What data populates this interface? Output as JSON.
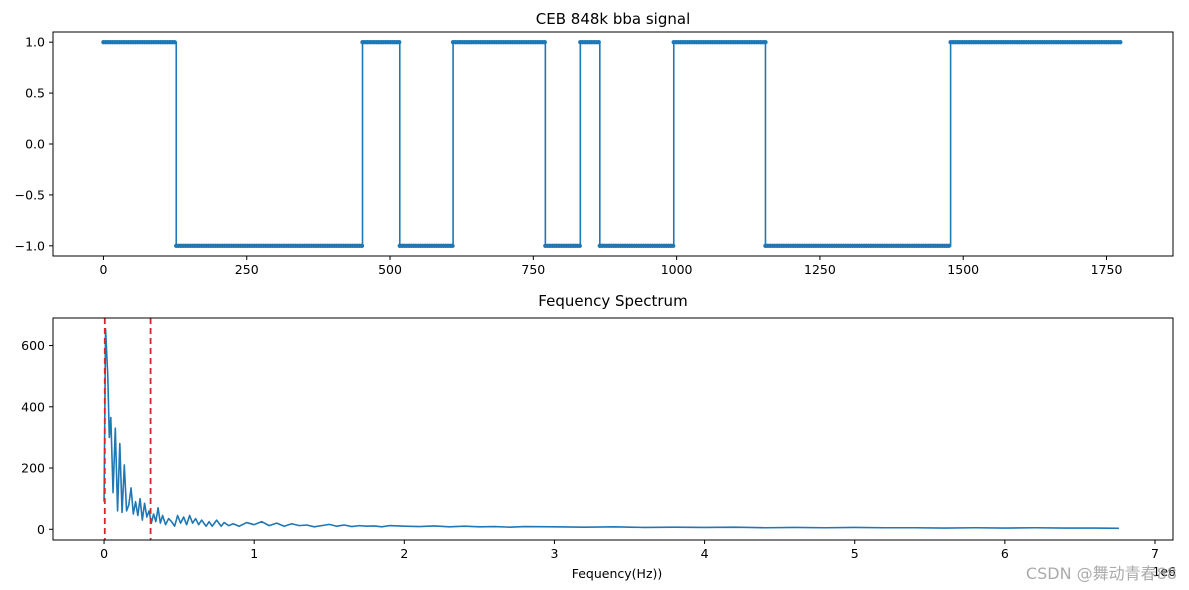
{
  "watermark": "CSDN @舞动青春88",
  "colors": {
    "series": "#1f77b4",
    "marker_line": "#d62728",
    "axis": "#000000"
  },
  "chart_data": [
    {
      "type": "line",
      "title": "CEB 848k bba signal",
      "xlabel": "",
      "ylabel": "",
      "xlim": [
        -88,
        1866
      ],
      "ylim": [
        -1.1,
        1.1
      ],
      "xticks": [
        0,
        250,
        500,
        750,
        1000,
        1250,
        1500,
        1750
      ],
      "xtick_labels": [
        "0",
        "250",
        "500",
        "750",
        "1000",
        "1250",
        "1500",
        "1750"
      ],
      "yticks": [
        -1.0,
        -0.5,
        0.0,
        0.5,
        1.0
      ],
      "ytick_labels": [
        "−1.0",
        "−0.5",
        "0.0",
        "0.5",
        "1.0"
      ],
      "marker": "point",
      "marker_step": 4,
      "x_range": [
        0,
        1776
      ],
      "levels": [
        {
          "from": 0,
          "to": 127,
          "value": 1
        },
        {
          "from": 127,
          "to": 452,
          "value": -1
        },
        {
          "from": 452,
          "to": 517,
          "value": 1
        },
        {
          "from": 517,
          "to": 610,
          "value": -1
        },
        {
          "from": 610,
          "to": 771,
          "value": 1
        },
        {
          "from": 771,
          "to": 832,
          "value": -1
        },
        {
          "from": 832,
          "to": 866,
          "value": 1
        },
        {
          "from": 866,
          "to": 995,
          "value": -1
        },
        {
          "from": 995,
          "to": 1155,
          "value": 1
        },
        {
          "from": 1155,
          "to": 1478,
          "value": -1
        },
        {
          "from": 1478,
          "to": 1776,
          "value": 1
        }
      ]
    },
    {
      "type": "line",
      "title": "Fequency Spectrum",
      "xlabel": "Fequency(Hz))",
      "ylabel": "",
      "offset_label": "1e6",
      "xlim": [
        -0.34,
        7.12
      ],
      "ylim": [
        -35,
        690
      ],
      "xticks": [
        0,
        1,
        2,
        3,
        4,
        5,
        6,
        7
      ],
      "xtick_labels": [
        "0",
        "1",
        "2",
        "3",
        "4",
        "5",
        "6",
        "7"
      ],
      "yticks": [
        0,
        200,
        400,
        600
      ],
      "ytick_labels": [
        "0",
        "200",
        "400",
        "600"
      ],
      "vlines": [
        0.005,
        0.31
      ],
      "spectrum_points": [
        [
          0.0,
          90
        ],
        [
          0.01,
          655
        ],
        [
          0.025,
          500
        ],
        [
          0.035,
          300
        ],
        [
          0.045,
          365
        ],
        [
          0.06,
          120
        ],
        [
          0.075,
          330
        ],
        [
          0.09,
          60
        ],
        [
          0.105,
          280
        ],
        [
          0.12,
          55
        ],
        [
          0.135,
          210
        ],
        [
          0.15,
          60
        ],
        [
          0.165,
          80
        ],
        [
          0.18,
          135
        ],
        [
          0.195,
          50
        ],
        [
          0.21,
          90
        ],
        [
          0.225,
          45
        ],
        [
          0.24,
          100
        ],
        [
          0.255,
          30
        ],
        [
          0.27,
          85
        ],
        [
          0.285,
          40
        ],
        [
          0.3,
          60
        ],
        [
          0.315,
          20
        ],
        [
          0.33,
          50
        ],
        [
          0.345,
          25
        ],
        [
          0.36,
          70
        ],
        [
          0.375,
          20
        ],
        [
          0.39,
          45
        ],
        [
          0.41,
          15
        ],
        [
          0.43,
          35
        ],
        [
          0.45,
          25
        ],
        [
          0.47,
          10
        ],
        [
          0.49,
          45
        ],
        [
          0.51,
          20
        ],
        [
          0.53,
          40
        ],
        [
          0.55,
          15
        ],
        [
          0.57,
          45
        ],
        [
          0.59,
          20
        ],
        [
          0.61,
          35
        ],
        [
          0.63,
          15
        ],
        [
          0.65,
          30
        ],
        [
          0.68,
          10
        ],
        [
          0.7,
          25
        ],
        [
          0.72,
          10
        ],
        [
          0.75,
          30
        ],
        [
          0.78,
          10
        ],
        [
          0.8,
          22
        ],
        [
          0.83,
          12
        ],
        [
          0.86,
          18
        ],
        [
          0.9,
          10
        ],
        [
          0.95,
          22
        ],
        [
          1.0,
          15
        ],
        [
          1.05,
          25
        ],
        [
          1.1,
          12
        ],
        [
          1.15,
          20
        ],
        [
          1.2,
          10
        ],
        [
          1.25,
          18
        ],
        [
          1.3,
          12
        ],
        [
          1.35,
          14
        ],
        [
          1.4,
          8
        ],
        [
          1.45,
          12
        ],
        [
          1.5,
          16
        ],
        [
          1.55,
          10
        ],
        [
          1.6,
          14
        ],
        [
          1.65,
          9
        ],
        [
          1.7,
          12
        ],
        [
          1.75,
          10
        ],
        [
          1.8,
          11
        ],
        [
          1.85,
          8
        ],
        [
          1.9,
          12
        ],
        [
          2.0,
          10
        ],
        [
          2.1,
          9
        ],
        [
          2.2,
          11
        ],
        [
          2.3,
          8
        ],
        [
          2.4,
          10
        ],
        [
          2.5,
          8
        ],
        [
          2.6,
          9
        ],
        [
          2.7,
          7
        ],
        [
          2.8,
          9
        ],
        [
          3.0,
          8
        ],
        [
          3.2,
          7
        ],
        [
          3.4,
          8
        ],
        [
          3.6,
          6
        ],
        [
          3.8,
          7
        ],
        [
          4.0,
          6
        ],
        [
          4.2,
          7
        ],
        [
          4.4,
          5
        ],
        [
          4.6,
          6
        ],
        [
          4.8,
          5
        ],
        [
          5.0,
          6
        ],
        [
          5.2,
          5
        ],
        [
          5.4,
          5
        ],
        [
          5.6,
          4
        ],
        [
          5.8,
          5
        ],
        [
          6.0,
          4
        ],
        [
          6.2,
          5
        ],
        [
          6.4,
          4
        ],
        [
          6.6,
          4
        ],
        [
          6.76,
          3
        ]
      ]
    }
  ]
}
